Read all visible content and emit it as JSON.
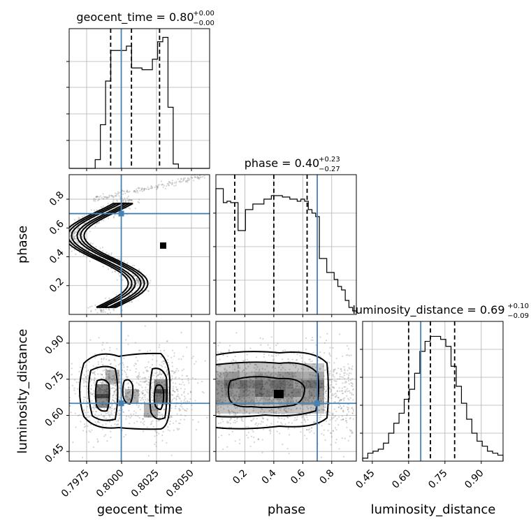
{
  "chart_data": {
    "type": "corner",
    "parameters": [
      "geocent_time",
      "phase",
      "luminosity_distance"
    ],
    "truths": {
      "geocent_time": 0.79968,
      "phase": 0.7,
      "luminosity_distance": 0.65
    },
    "panels": [
      {
        "type": "histogram",
        "param": "geocent_time",
        "title": {
          "text": "geocent_time = 0.80",
          "sup": "+0.00",
          "sub": "−0.00"
        },
        "xlim": [
          0.7956,
          0.8066
        ],
        "bins": [
          0.7956,
          0.796,
          0.7964,
          0.7968,
          0.7972,
          0.7976,
          0.798,
          0.7984,
          0.7988,
          0.7992,
          0.7996,
          0.8,
          0.8004,
          0.8008,
          0.8012,
          0.8016,
          0.802,
          0.8024,
          0.8028,
          0.8032,
          0.8036,
          0.804,
          0.8044,
          0.8048,
          0.8052,
          0.8056,
          0.806,
          0.8064
        ],
        "counts": [
          0,
          0,
          0,
          0,
          0,
          10,
          50,
          100,
          135,
          135,
          135,
          140,
          115,
          115,
          113,
          113,
          125,
          145,
          150,
          70,
          5,
          0,
          0,
          0,
          0,
          0,
          0
        ],
        "quantiles": [
          0.79885,
          0.80048,
          0.80268
        ],
        "grid": true
      },
      {
        "type": "scatter-contour",
        "x": "geocent_time",
        "y": "phase",
        "xlim": [
          0.7956,
          0.8066
        ],
        "ylim": [
          0.0,
          0.97
        ],
        "yticks": [
          "0.2",
          "0.4",
          "0.6",
          "0.8"
        ],
        "grid": true
      },
      {
        "type": "histogram",
        "param": "phase",
        "title": {
          "text": "phase = 0.40",
          "sup": "+0.23",
          "sub": "−0.27"
        },
        "xlim": [
          0.0,
          0.97
        ],
        "counts": [
          180,
          180,
          160,
          162,
          160,
          160,
          120,
          120,
          150,
          150,
          158,
          158,
          158,
          165,
          165,
          170,
          170,
          170,
          168,
          168,
          165,
          165,
          162,
          165,
          162,
          150,
          145,
          140,
          80,
          80,
          60,
          60,
          50,
          40,
          35,
          20,
          10,
          5
        ],
        "quantiles": [
          0.13,
          0.4,
          0.63
        ],
        "grid": true
      },
      {
        "type": "scatter-contour",
        "x": "geocent_time",
        "y": "luminosity_distance",
        "xlim": [
          0.7956,
          0.8066
        ],
        "ylim": [
          0.41,
          0.99
        ],
        "xticks": [
          "0.7975",
          "0.8000",
          "0.8025",
          "0.8050"
        ],
        "yticks": [
          "0.45",
          "0.60",
          "0.75",
          "0.90"
        ],
        "grid": true
      },
      {
        "type": "scatter-contour",
        "x": "phase",
        "y": "luminosity_distance",
        "xlim": [
          0.0,
          0.97
        ],
        "ylim": [
          0.41,
          0.99
        ],
        "xticks": [
          "0.2",
          "0.4",
          "0.6",
          "0.8"
        ],
        "grid": true
      },
      {
        "type": "histogram",
        "param": "luminosity_distance",
        "title": {
          "text": "luminosity_distance = 0.69",
          "sup": "+0.10",
          "sub": "−0.09"
        },
        "xlim": [
          0.41,
          0.99
        ],
        "counts": [
          3,
          8,
          10,
          12,
          18,
          28,
          38,
          48,
          62,
          72,
          88,
          110,
          120,
          125,
          125,
          122,
          115,
          95,
          75,
          58,
          42,
          28,
          20,
          15,
          10,
          8,
          6
        ],
        "quantiles": [
          0.6,
          0.69,
          0.79
        ],
        "xticks": [
          "0.45",
          "0.60",
          "0.75",
          "0.90"
        ],
        "grid": true
      }
    ],
    "axis_labels": {
      "x": [
        "geocent_time",
        "phase",
        "luminosity_distance"
      ],
      "y": [
        "phase",
        "luminosity_distance"
      ]
    }
  }
}
